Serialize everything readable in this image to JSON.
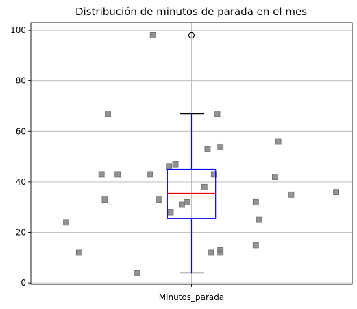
{
  "chart_data": {
    "type": "box",
    "title": "Distribución de minutos de parada en el mes",
    "xlabel": "",
    "ylabel": "",
    "categories": [
      "Minutos_parada"
    ],
    "ylim": [
      -0.5,
      103
    ],
    "yticks": [
      0,
      20,
      40,
      60,
      80,
      100
    ],
    "grid": true,
    "box": {
      "min_whisker": 4,
      "q1": 25.5,
      "median": 35.5,
      "q3": 45,
      "max_whisker": 67,
      "outliers": [
        98
      ]
    },
    "points": [
      {
        "x": -0.39,
        "y": 24
      },
      {
        "x": -0.35,
        "y": 12
      },
      {
        "x": -0.28,
        "y": 43
      },
      {
        "x": -0.27,
        "y": 33
      },
      {
        "x": -0.26,
        "y": 67
      },
      {
        "x": -0.23,
        "y": 43
      },
      {
        "x": -0.17,
        "y": 4
      },
      {
        "x": -0.13,
        "y": 43
      },
      {
        "x": -0.12,
        "y": 98
      },
      {
        "x": -0.1,
        "y": 33
      },
      {
        "x": -0.07,
        "y": 46
      },
      {
        "x": -0.065,
        "y": 28
      },
      {
        "x": -0.05,
        "y": 47
      },
      {
        "x": -0.03,
        "y": 31
      },
      {
        "x": -0.015,
        "y": 32
      },
      {
        "x": 0.04,
        "y": 38
      },
      {
        "x": 0.05,
        "y": 53
      },
      {
        "x": 0.06,
        "y": 12
      },
      {
        "x": 0.07,
        "y": 43
      },
      {
        "x": 0.08,
        "y": 67
      },
      {
        "x": 0.09,
        "y": 54
      },
      {
        "x": 0.09,
        "y": 12
      },
      {
        "x": 0.09,
        "y": 13
      },
      {
        "x": 0.2,
        "y": 32
      },
      {
        "x": 0.2,
        "y": 15
      },
      {
        "x": 0.21,
        "y": 25
      },
      {
        "x": 0.26,
        "y": 42
      },
      {
        "x": 0.27,
        "y": 56
      },
      {
        "x": 0.31,
        "y": 35
      },
      {
        "x": 0.45,
        "y": 36
      }
    ],
    "colors": {
      "box": "#0000ff",
      "median": "#ff0000",
      "whisker": "#0000ff",
      "cap": "#000000",
      "outlier_edge": "#000000",
      "points": "#808080",
      "grid": "#b0b0b0"
    }
  }
}
